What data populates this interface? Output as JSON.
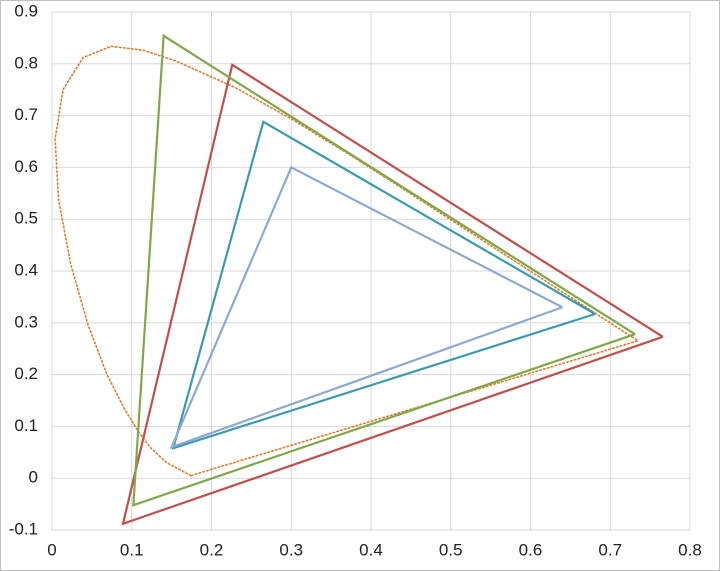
{
  "chart_data": {
    "type": "line",
    "xlim": [
      0,
      0.8
    ],
    "ylim": [
      -0.1,
      0.9
    ],
    "xticks": [
      0,
      0.1,
      0.2,
      0.3,
      0.4,
      0.5,
      0.6,
      0.7,
      0.8
    ],
    "yticks": [
      -0.1,
      0,
      0.1,
      0.2,
      0.3,
      0.4,
      0.5,
      0.6,
      0.7,
      0.8,
      0.9
    ],
    "grid": true,
    "series": [
      {
        "color": "#e07b2a",
        "style": "dotted",
        "x": [
          0.1741,
          0.144,
          0.1241,
          0.1096,
          0.0913,
          0.0687,
          0.0454,
          0.0235,
          0.0082,
          0.0039,
          0.0139,
          0.0389,
          0.0743,
          0.1142,
          0.1547,
          0.2296,
          0.3016,
          0.3731,
          0.4441,
          0.5125,
          0.5752,
          0.627,
          0.6915,
          0.719,
          0.7347,
          0.1741
        ],
        "y": [
          0.005,
          0.0297,
          0.0578,
          0.0868,
          0.1327,
          0.2007,
          0.295,
          0.4127,
          0.5384,
          0.6548,
          0.7502,
          0.812,
          0.8338,
          0.8262,
          0.8059,
          0.7543,
          0.6923,
          0.6245,
          0.5547,
          0.4866,
          0.4242,
          0.3725,
          0.3083,
          0.2809,
          0.2653,
          0.005
        ]
      },
      {
        "color": "#c0504d",
        "style": "solid",
        "x": [
          0.766,
          0.226,
          0.089,
          0.766
        ],
        "y": [
          0.273,
          0.798,
          -0.088,
          0.273
        ]
      },
      {
        "color": "#7fa84a",
        "style": "solid",
        "x": [
          0.731,
          0.14,
          0.102,
          0.731
        ],
        "y": [
          0.278,
          0.854,
          -0.052,
          0.278
        ]
      },
      {
        "color": "#3a9bb0",
        "style": "solid",
        "x": [
          0.681,
          0.265,
          0.152,
          0.681
        ],
        "y": [
          0.317,
          0.688,
          0.058,
          0.317
        ]
      },
      {
        "color": "#8ea9d0",
        "style": "solid",
        "x": [
          0.64,
          0.3,
          0.15,
          0.64
        ],
        "y": [
          0.33,
          0.6,
          0.06,
          0.33
        ]
      }
    ]
  }
}
